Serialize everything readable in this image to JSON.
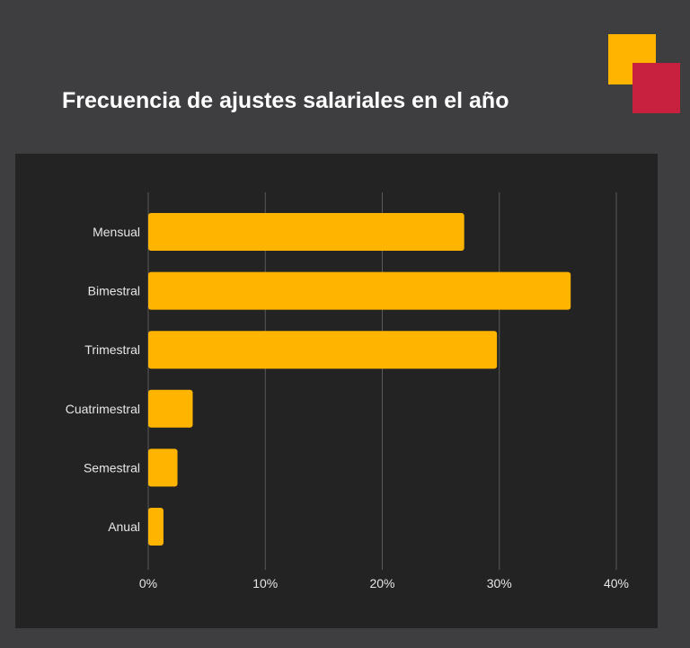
{
  "chart_data": {
    "type": "bar",
    "orientation": "horizontal",
    "title": "Frecuencia de ajustes salariales en el año",
    "categories": [
      "Mensual",
      "Bimestral",
      "Trimestral",
      "Cuatrimestral",
      "Semestral",
      "Anual"
    ],
    "values": [
      27.0,
      36.1,
      29.8,
      3.8,
      2.5,
      1.3
    ],
    "unit": "%",
    "xlim": [
      0,
      40
    ],
    "xticks": [
      0,
      10,
      20,
      30,
      40
    ],
    "xtick_labels": [
      "0%",
      "10%",
      "20%",
      "30%",
      "40%"
    ],
    "grid": true,
    "bar_color": "#ffb400",
    "xlabel": "",
    "ylabel": ""
  },
  "colors": {
    "background": "#3e3d40",
    "panel": "#232323",
    "logo_yellow": "#ffb400",
    "logo_red": "#c8213f"
  }
}
